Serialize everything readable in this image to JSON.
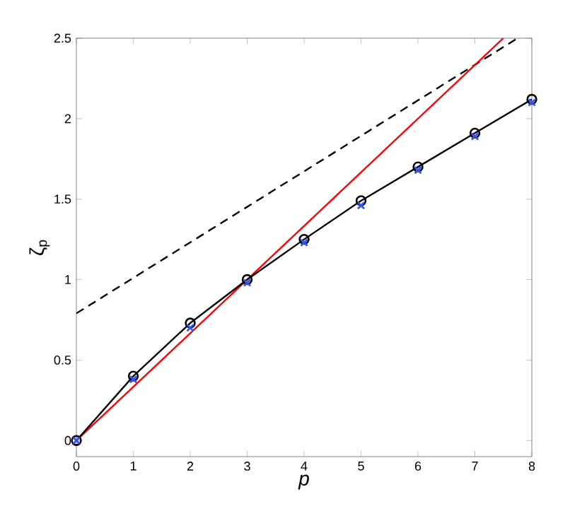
{
  "chart_data": {
    "type": "line",
    "xlabel": "p",
    "ylabel": "ζ$_{p}$",
    "xlim": [
      0,
      8
    ],
    "ylim": [
      -0.1,
      2.5
    ],
    "xticks": [
      0,
      1,
      2,
      3,
      4,
      5,
      6,
      7,
      8
    ],
    "yticks": [
      0,
      0.5,
      1,
      1.5,
      2,
      2.5
    ],
    "grid": false,
    "series": [
      {
        "color": "#000000",
        "line_style": "dashed",
        "marker": "none",
        "x": [
          0,
          7.75
        ],
        "values": [
          0.79,
          2.5
        ]
      },
      {
        "color": "#ff0000",
        "line_style": "solid",
        "marker": "none",
        "x": [
          0,
          7.5
        ],
        "values": [
          0,
          2.5
        ]
      },
      {
        "color": "#000000",
        "line_style": "solid",
        "marker": "circle",
        "x": [
          0,
          1,
          2,
          3,
          4,
          5,
          6,
          7,
          8
        ],
        "values": [
          0,
          0.4,
          0.73,
          1.0,
          1.25,
          1.49,
          1.7,
          1.91,
          2.12
        ]
      },
      {
        "type": "scatter",
        "color": "#3355ee",
        "marker": "cross",
        "x": [
          0,
          1,
          2,
          3,
          4,
          5,
          6,
          7,
          8
        ],
        "values": [
          0,
          0.38,
          0.7,
          0.98,
          1.23,
          1.46,
          1.68,
          1.89,
          2.1
        ]
      }
    ]
  }
}
